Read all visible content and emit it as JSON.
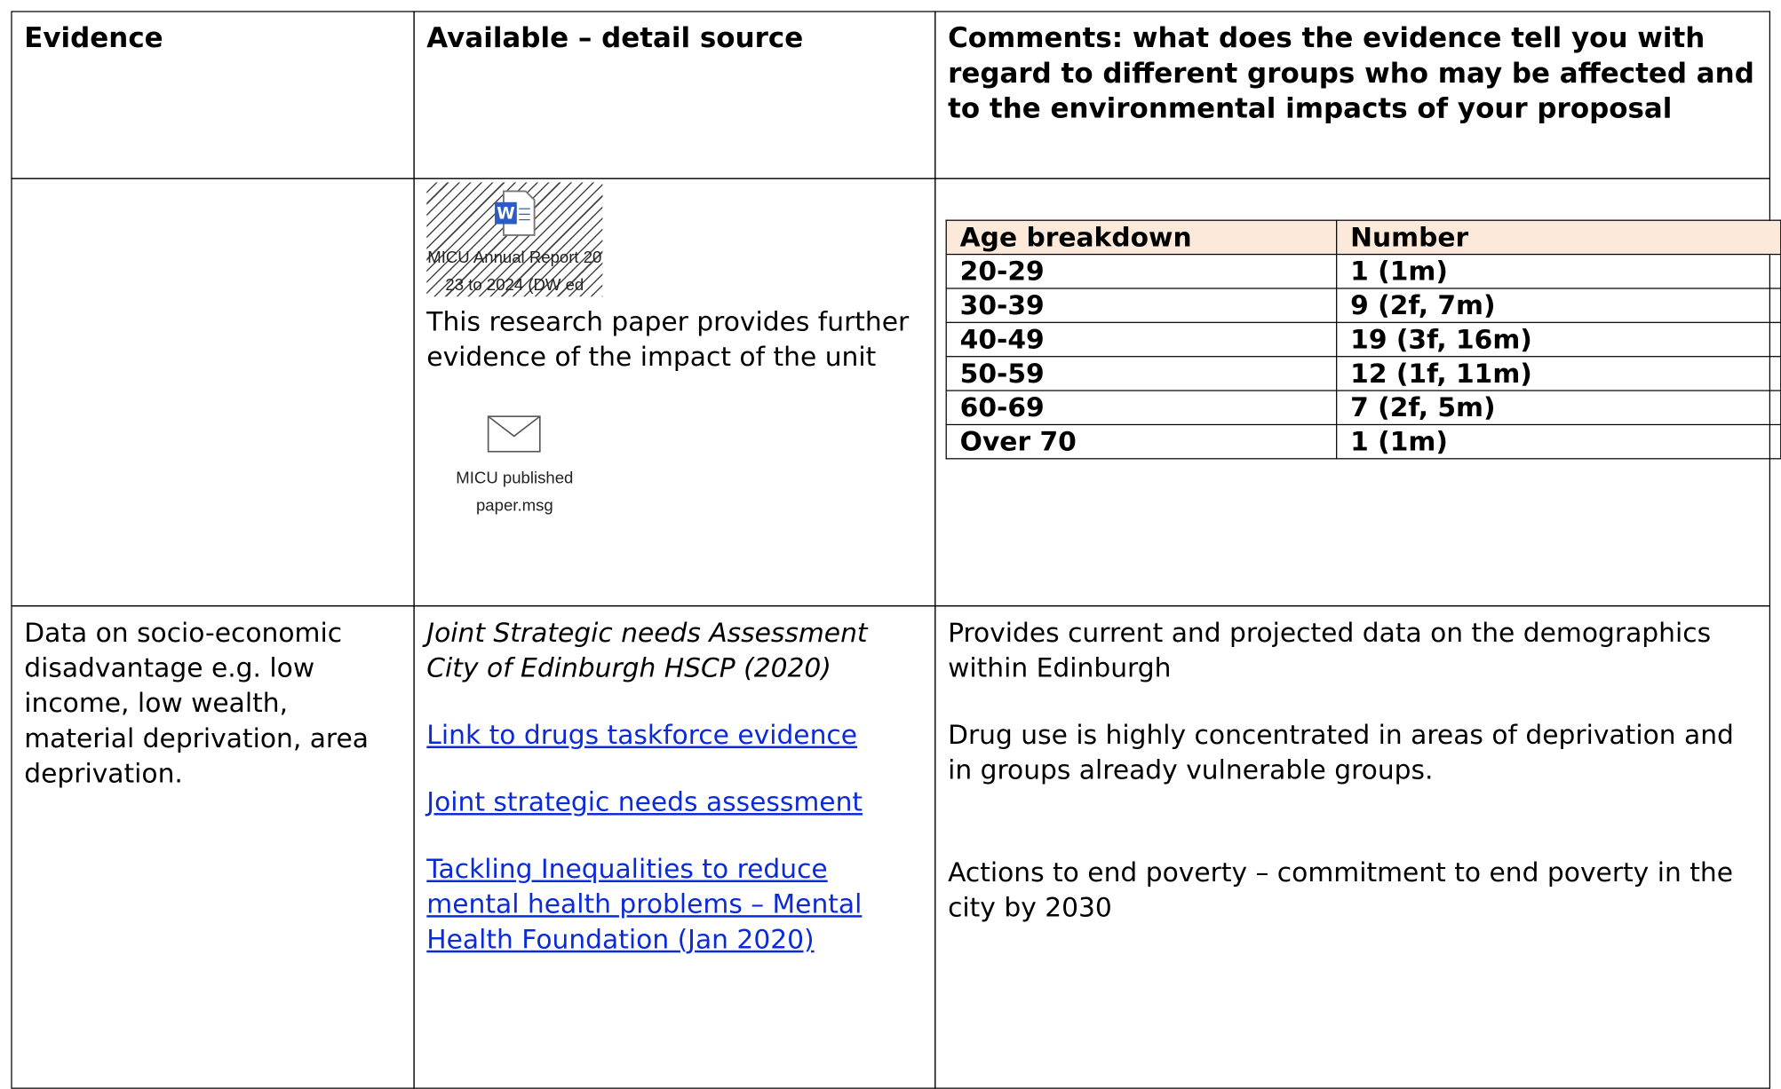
{
  "table": {
    "header": [
      "Evidence",
      "Available – detail source",
      "Comments: what does the evidence tell you with regard to different groups who may be affected and to the environmental impacts of your proposal"
    ],
    "row_1": {
      "attachments": [
        {
          "kind": "word",
          "label": "MICU Annual Report 2023 to 2024 (DW ed"
        }
      ],
      "source_text": "This research paper provides further evidence of the impact of the unit",
      "email_attachment": {
        "kind": "msg",
        "label": "MICU published paper.msg"
      },
      "age_table": {
        "header": [
          "Age breakdown",
          "Number"
        ],
        "rows": [
          [
            "20-29",
            "1 (1m)"
          ],
          [
            "30-39",
            "9 (2f, 7m)"
          ],
          [
            "40-49",
            "19 (3f, 16m)"
          ],
          [
            "50-59",
            "12 (1f, 11m)"
          ],
          [
            "60-69",
            "7 (2f, 5m)"
          ],
          [
            "Over 70",
            "1 (1m)"
          ]
        ]
      }
    },
    "row_2": {
      "evidence": "Data on socio-economic disadvantage e.g. low income, low wealth, material deprivation, area deprivation.",
      "sources": [
        {
          "text": "Joint Strategic needs Assessment City of Edinburgh HSCP (2020)",
          "style": "italic"
        },
        {
          "text": "Link to drugs taskforce evidence",
          "style": "link"
        },
        {
          "text": "Joint strategic needs assessment",
          "style": "link"
        },
        {
          "text": "Tackling Inequalities to reduce mental health problems – Mental Health Foundation (Jan 2020)",
          "style": "link"
        }
      ],
      "comments": [
        "Provides current and projected data on the demographics within Edinburgh",
        "Drug use is highly concentrated in areas of deprivation and in groups already vulnerable groups.",
        "Actions to end poverty – commitment to end poverty in the city by 2030"
      ]
    }
  }
}
